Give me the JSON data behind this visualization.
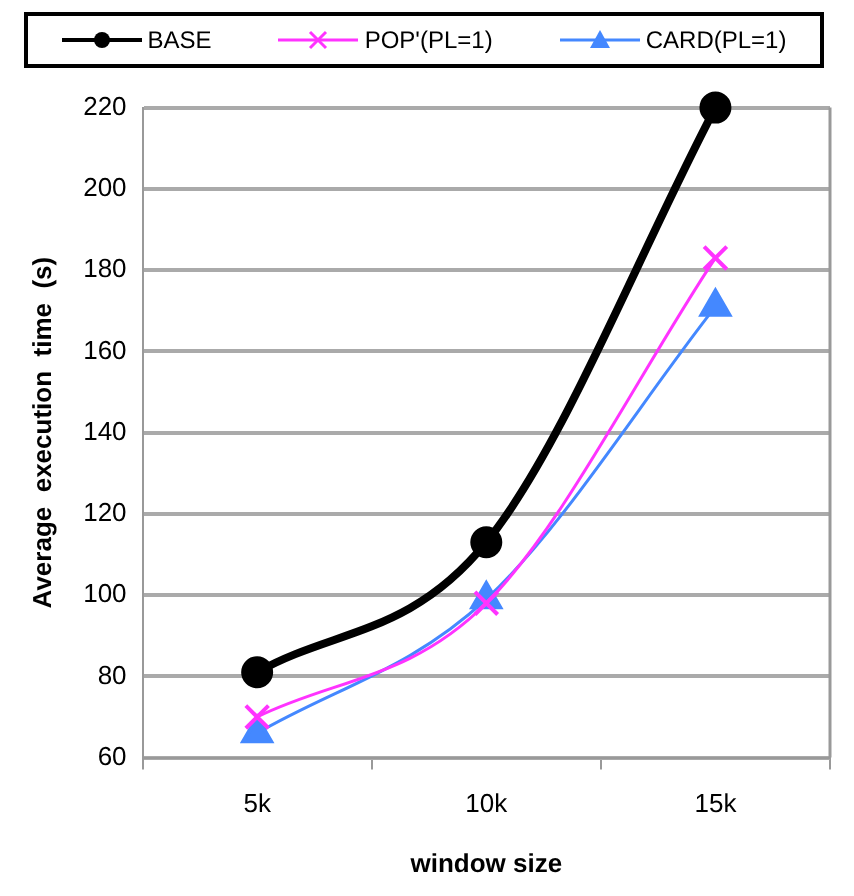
{
  "chart_data": {
    "type": "line",
    "xlabel": "window size",
    "ylabel": "Average  execution  time  (s)",
    "categories": [
      "5k",
      "10k",
      "15k"
    ],
    "series": [
      {
        "name": "BASE",
        "color": "#000000",
        "values": [
          81,
          113,
          220
        ],
        "marker": "circle"
      },
      {
        "name": "POP'(PL=1)",
        "color": "#ff33ff",
        "values": [
          70,
          98,
          183
        ],
        "marker": "cross"
      },
      {
        "name": "CARD(PL=1)",
        "color": "#4488ff",
        "values": [
          66,
          99,
          171
        ],
        "marker": "triangle"
      }
    ],
    "ylim": [
      60,
      220
    ],
    "yticks": [
      60,
      80,
      100,
      120,
      140,
      160,
      180,
      200,
      220
    ],
    "grid": "y",
    "legend": "top"
  }
}
